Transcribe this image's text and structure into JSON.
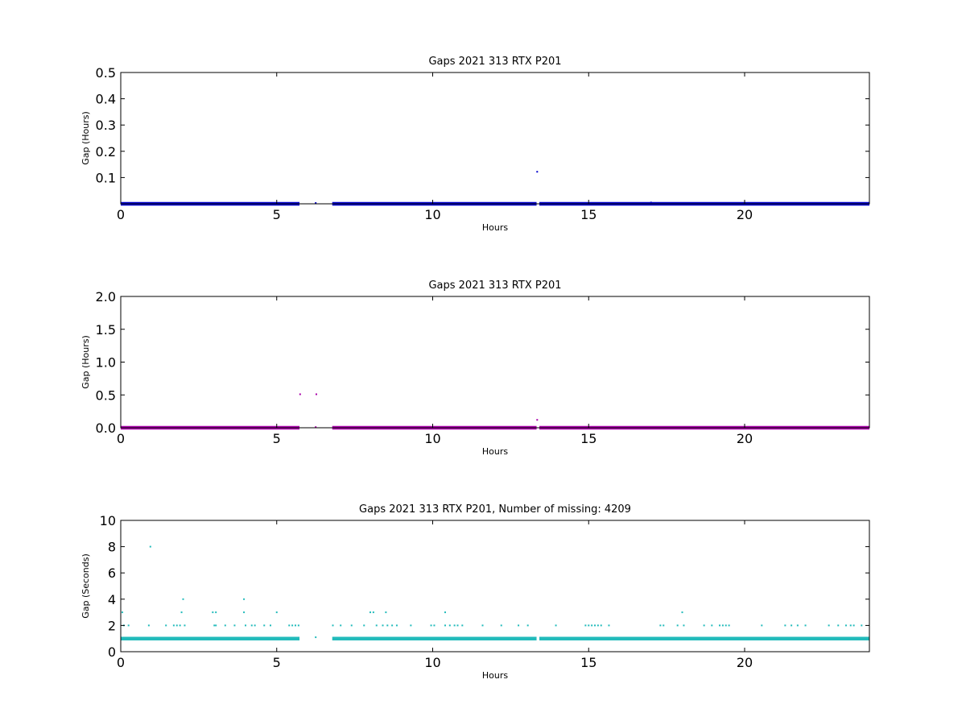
{
  "chart_data": [
    {
      "type": "scatter",
      "title": "Gaps 2021 313 RTX  P201",
      "xlabel": "Hours",
      "ylabel": "Gap (Hours)",
      "xlim": [
        0,
        24
      ],
      "ylim": [
        0,
        0.5
      ],
      "xticks": [
        "0",
        "5",
        "10",
        "15",
        "20"
      ],
      "yticks": [
        "0.1",
        "0.2",
        "0.3",
        "0.4",
        "0.5"
      ],
      "color": "#0000cc",
      "grid": false,
      "series": [
        {
          "x_ranges": [
            [
              0.0,
              5.73
            ],
            [
              6.78,
              13.33
            ],
            [
              13.42,
              24.0
            ]
          ],
          "baseline_y": 0.0,
          "points": [
            {
              "x": 6.25,
              "y": 0.003
            },
            {
              "x": 13.35,
              "y": 0.122
            },
            {
              "x": 17.0,
              "y": 0.005
            }
          ]
        }
      ]
    },
    {
      "type": "scatter",
      "title": "Gaps 2021 313 RTX  P201",
      "xlabel": "Hours",
      "ylabel": "Gap (Hours)",
      "xlim": [
        0,
        24
      ],
      "ylim": [
        0,
        2.0
      ],
      "xticks": [
        "0",
        "5",
        "10",
        "15",
        "20"
      ],
      "yticks": [
        "0.0",
        "0.5",
        "1.0",
        "1.5",
        "2.0"
      ],
      "color": "#aa00aa",
      "grid": false,
      "series": [
        {
          "x_ranges": [
            [
              0.0,
              5.73
            ],
            [
              6.78,
              13.33
            ],
            [
              13.42,
              24.0
            ]
          ],
          "baseline_y": 0.0,
          "points": [
            {
              "x": 5.75,
              "y": 0.51
            },
            {
              "x": 6.27,
              "y": 0.51
            },
            {
              "x": 6.25,
              "y": 0.01
            },
            {
              "x": 13.35,
              "y": 0.12
            }
          ]
        }
      ]
    },
    {
      "type": "scatter",
      "title": "Gaps 2021 313 RTX  P201, Number of missing: 4209",
      "xlabel": "Hours",
      "ylabel": "Gap (Seconds)",
      "xlim": [
        0,
        24
      ],
      "ylim": [
        0,
        10
      ],
      "xticks": [
        "0",
        "5",
        "10",
        "15",
        "20"
      ],
      "yticks": [
        "0",
        "2",
        "4",
        "6",
        "8",
        "10"
      ],
      "color": "#22bbbb",
      "grid": false,
      "series": [
        {
          "x_ranges": [
            [
              0.0,
              5.73
            ],
            [
              6.78,
              13.33
            ],
            [
              13.42,
              24.0
            ]
          ],
          "baseline_y": 1.0,
          "points": [
            {
              "x": 0.05,
              "y": 3
            },
            {
              "x": 0.1,
              "y": 2
            },
            {
              "x": 0.25,
              "y": 2
            },
            {
              "x": 0.95,
              "y": 8
            },
            {
              "x": 0.9,
              "y": 2
            },
            {
              "x": 1.45,
              "y": 2
            },
            {
              "x": 1.7,
              "y": 2
            },
            {
              "x": 1.8,
              "y": 2
            },
            {
              "x": 1.9,
              "y": 2
            },
            {
              "x": 2.0,
              "y": 4
            },
            {
              "x": 1.95,
              "y": 3
            },
            {
              "x": 2.05,
              "y": 2
            },
            {
              "x": 2.95,
              "y": 3
            },
            {
              "x": 3.05,
              "y": 3
            },
            {
              "x": 3.0,
              "y": 2
            },
            {
              "x": 3.05,
              "y": 2
            },
            {
              "x": 3.35,
              "y": 2
            },
            {
              "x": 3.65,
              "y": 2
            },
            {
              "x": 3.95,
              "y": 4
            },
            {
              "x": 3.95,
              "y": 3
            },
            {
              "x": 4.0,
              "y": 2
            },
            {
              "x": 4.2,
              "y": 2
            },
            {
              "x": 4.3,
              "y": 2
            },
            {
              "x": 4.6,
              "y": 2
            },
            {
              "x": 4.8,
              "y": 2
            },
            {
              "x": 5.0,
              "y": 3
            },
            {
              "x": 5.4,
              "y": 2
            },
            {
              "x": 5.5,
              "y": 2
            },
            {
              "x": 5.6,
              "y": 2
            },
            {
              "x": 5.7,
              "y": 2
            },
            {
              "x": 6.25,
              "y": 1.1
            },
            {
              "x": 6.8,
              "y": 2
            },
            {
              "x": 7.05,
              "y": 2
            },
            {
              "x": 7.4,
              "y": 2
            },
            {
              "x": 7.8,
              "y": 2
            },
            {
              "x": 8.0,
              "y": 3
            },
            {
              "x": 8.1,
              "y": 3
            },
            {
              "x": 8.2,
              "y": 2
            },
            {
              "x": 8.4,
              "y": 2
            },
            {
              "x": 8.5,
              "y": 3
            },
            {
              "x": 8.55,
              "y": 2
            },
            {
              "x": 8.7,
              "y": 2
            },
            {
              "x": 8.85,
              "y": 2
            },
            {
              "x": 9.3,
              "y": 2
            },
            {
              "x": 9.95,
              "y": 2
            },
            {
              "x": 10.05,
              "y": 2
            },
            {
              "x": 10.4,
              "y": 3
            },
            {
              "x": 10.4,
              "y": 2
            },
            {
              "x": 10.55,
              "y": 2
            },
            {
              "x": 10.7,
              "y": 2
            },
            {
              "x": 10.8,
              "y": 2
            },
            {
              "x": 10.95,
              "y": 2
            },
            {
              "x": 11.6,
              "y": 2
            },
            {
              "x": 12.2,
              "y": 2
            },
            {
              "x": 12.75,
              "y": 2
            },
            {
              "x": 13.05,
              "y": 2
            },
            {
              "x": 13.95,
              "y": 2
            },
            {
              "x": 14.9,
              "y": 2
            },
            {
              "x": 15.0,
              "y": 2
            },
            {
              "x": 15.1,
              "y": 2
            },
            {
              "x": 15.2,
              "y": 2
            },
            {
              "x": 15.3,
              "y": 2
            },
            {
              "x": 15.4,
              "y": 2
            },
            {
              "x": 15.65,
              "y": 2
            },
            {
              "x": 17.3,
              "y": 2
            },
            {
              "x": 17.4,
              "y": 2
            },
            {
              "x": 17.85,
              "y": 2
            },
            {
              "x": 18.0,
              "y": 3
            },
            {
              "x": 18.05,
              "y": 2
            },
            {
              "x": 18.7,
              "y": 2
            },
            {
              "x": 18.95,
              "y": 2
            },
            {
              "x": 19.2,
              "y": 2
            },
            {
              "x": 19.3,
              "y": 2
            },
            {
              "x": 19.4,
              "y": 2
            },
            {
              "x": 19.5,
              "y": 2
            },
            {
              "x": 20.55,
              "y": 2
            },
            {
              "x": 21.3,
              "y": 2
            },
            {
              "x": 21.5,
              "y": 2
            },
            {
              "x": 21.7,
              "y": 2
            },
            {
              "x": 21.95,
              "y": 2
            },
            {
              "x": 22.7,
              "y": 2
            },
            {
              "x": 23.0,
              "y": 2
            },
            {
              "x": 23.25,
              "y": 2
            },
            {
              "x": 23.4,
              "y": 2
            },
            {
              "x": 23.5,
              "y": 2
            },
            {
              "x": 23.75,
              "y": 2
            }
          ]
        }
      ]
    }
  ]
}
